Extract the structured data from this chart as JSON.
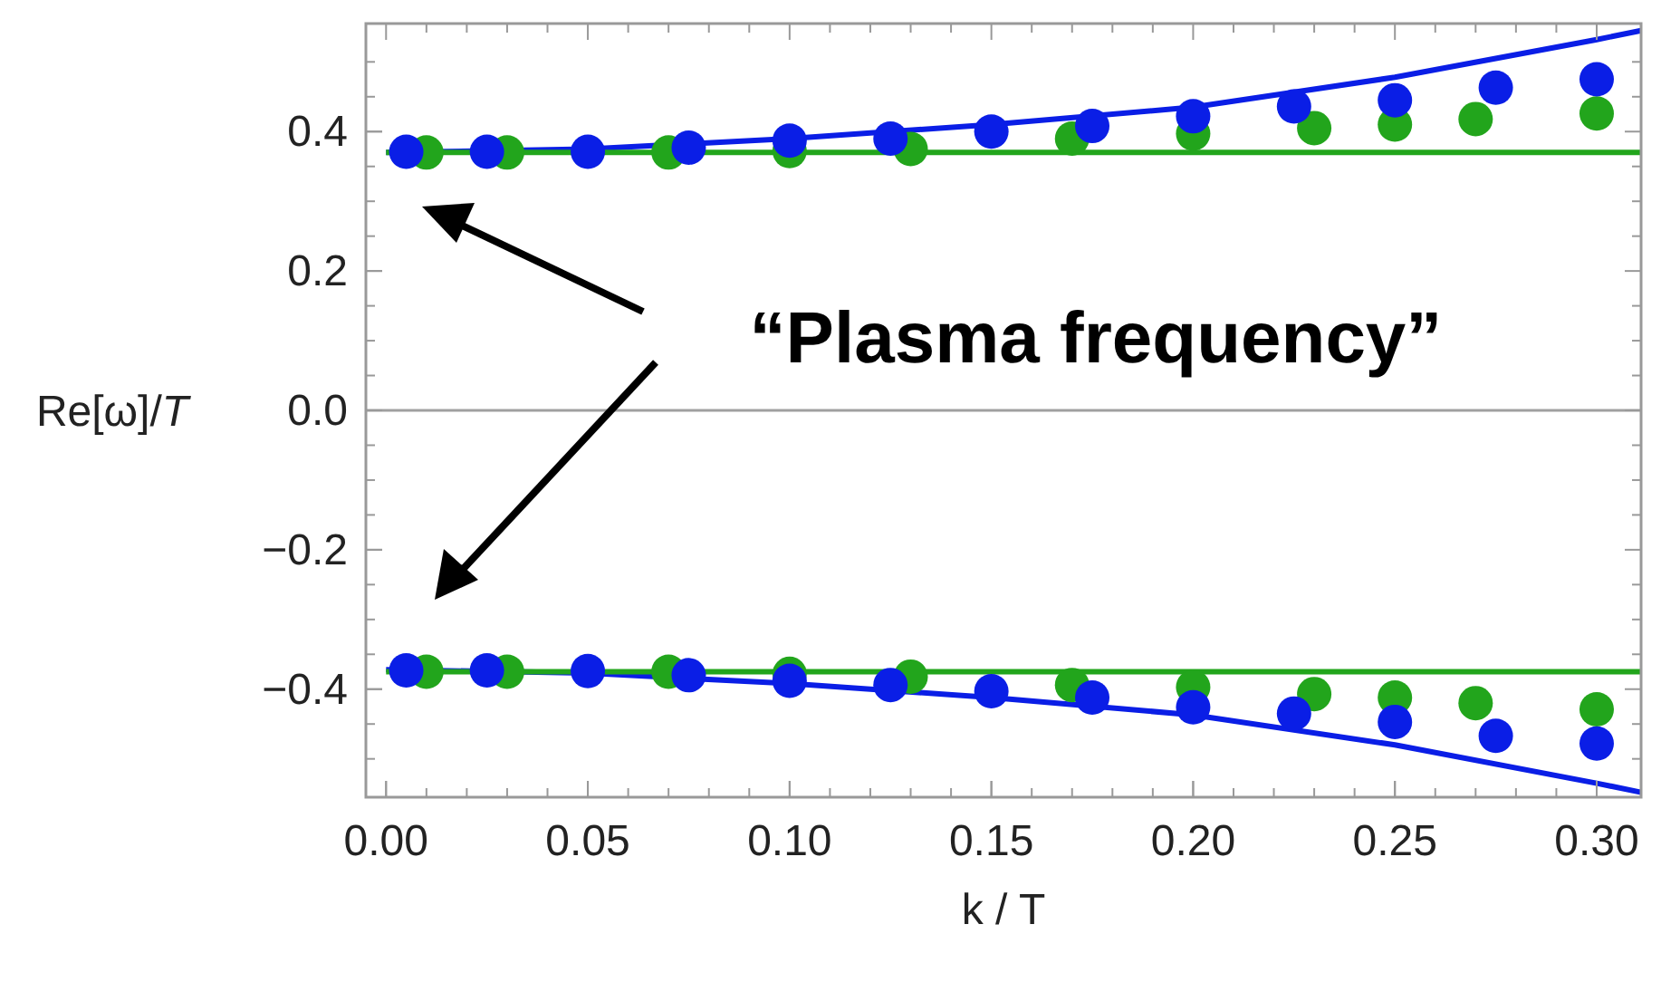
{
  "chart_data": {
    "type": "scatter",
    "xlabel": "k / T",
    "ylabel": "Re[ω]/T",
    "xlim": [
      -0.005,
      0.311
    ],
    "ylim": [
      -0.555,
      0.555
    ],
    "xticks": [
      {
        "value": 0,
        "label": "0.00"
      },
      {
        "value": 0.05,
        "label": "0.05"
      },
      {
        "value": 0.1,
        "label": "0.10"
      },
      {
        "value": 0.15,
        "label": "0.15"
      },
      {
        "value": 0.2,
        "label": "0.20"
      },
      {
        "value": 0.25,
        "label": "0.25"
      },
      {
        "value": 0.3,
        "label": "0.30"
      }
    ],
    "yticks": [
      {
        "value": -0.4,
        "label": "−0.4"
      },
      {
        "value": -0.2,
        "label": "−0.2"
      },
      {
        "value": 0,
        "label": "0.0"
      },
      {
        "value": 0.2,
        "label": "0.2"
      },
      {
        "value": 0.4,
        "label": "0.4"
      }
    ],
    "grid": false,
    "marker": "circle",
    "ref_lines": [
      {
        "axis": "y",
        "value": 0,
        "color": "#a0a0a0"
      }
    ],
    "annotations": [
      "“Plasma frequency”"
    ],
    "series": [
      {
        "type": "line",
        "color": "#0a1ee6",
        "marker": "none",
        "x": [
          0,
          0.05,
          0.1,
          0.15,
          0.2,
          0.25,
          0.3,
          0.311
        ],
        "values": [
          0.37,
          0.375,
          0.39,
          0.41,
          0.435,
          0.478,
          0.532,
          0.545
        ]
      },
      {
        "type": "line",
        "color": "#0a1ee6",
        "marker": "none",
        "x": [
          0,
          0.05,
          0.1,
          0.15,
          0.2,
          0.25,
          0.3,
          0.311
        ],
        "values": [
          -0.372,
          -0.377,
          -0.392,
          -0.412,
          -0.437,
          -0.48,
          -0.535,
          -0.548
        ]
      },
      {
        "type": "line",
        "color": "#22a51c",
        "marker": "none",
        "x": [
          0,
          0.311
        ],
        "values": [
          0.37,
          0.37
        ]
      },
      {
        "type": "line",
        "color": "#22a51c",
        "marker": "none",
        "x": [
          0,
          0.311
        ],
        "values": [
          -0.375,
          -0.375
        ]
      },
      {
        "color": "#22a51c",
        "x": [
          0.01,
          0.03,
          0.07,
          0.1,
          0.13,
          0.17,
          0.2,
          0.23,
          0.25,
          0.27,
          0.3
        ],
        "values": [
          0.37,
          0.37,
          0.37,
          0.372,
          0.375,
          0.39,
          0.397,
          0.405,
          0.41,
          0.418,
          0.426
        ]
      },
      {
        "color": "#22a51c",
        "x": [
          0.01,
          0.03,
          0.07,
          0.1,
          0.13,
          0.17,
          0.2,
          0.23,
          0.25,
          0.27,
          0.3
        ],
        "values": [
          -0.375,
          -0.375,
          -0.375,
          -0.378,
          -0.382,
          -0.394,
          -0.397,
          -0.407,
          -0.412,
          -0.42,
          -0.429
        ]
      },
      {
        "color": "#0a1ee6",
        "x": [
          0.005,
          0.025,
          0.05,
          0.075,
          0.1,
          0.125,
          0.15,
          0.175,
          0.2,
          0.225,
          0.25,
          0.275,
          0.3
        ],
        "values": [
          0.371,
          0.371,
          0.371,
          0.377,
          0.387,
          0.39,
          0.4,
          0.408,
          0.422,
          0.436,
          0.445,
          0.463,
          0.475
        ]
      },
      {
        "color": "#0a1ee6",
        "x": [
          0.005,
          0.025,
          0.05,
          0.075,
          0.1,
          0.125,
          0.15,
          0.175,
          0.2,
          0.225,
          0.25,
          0.275,
          0.3
        ],
        "values": [
          -0.373,
          -0.373,
          -0.374,
          -0.38,
          -0.388,
          -0.394,
          -0.403,
          -0.412,
          -0.426,
          -0.435,
          -0.447,
          -0.467,
          -0.478
        ]
      }
    ]
  }
}
